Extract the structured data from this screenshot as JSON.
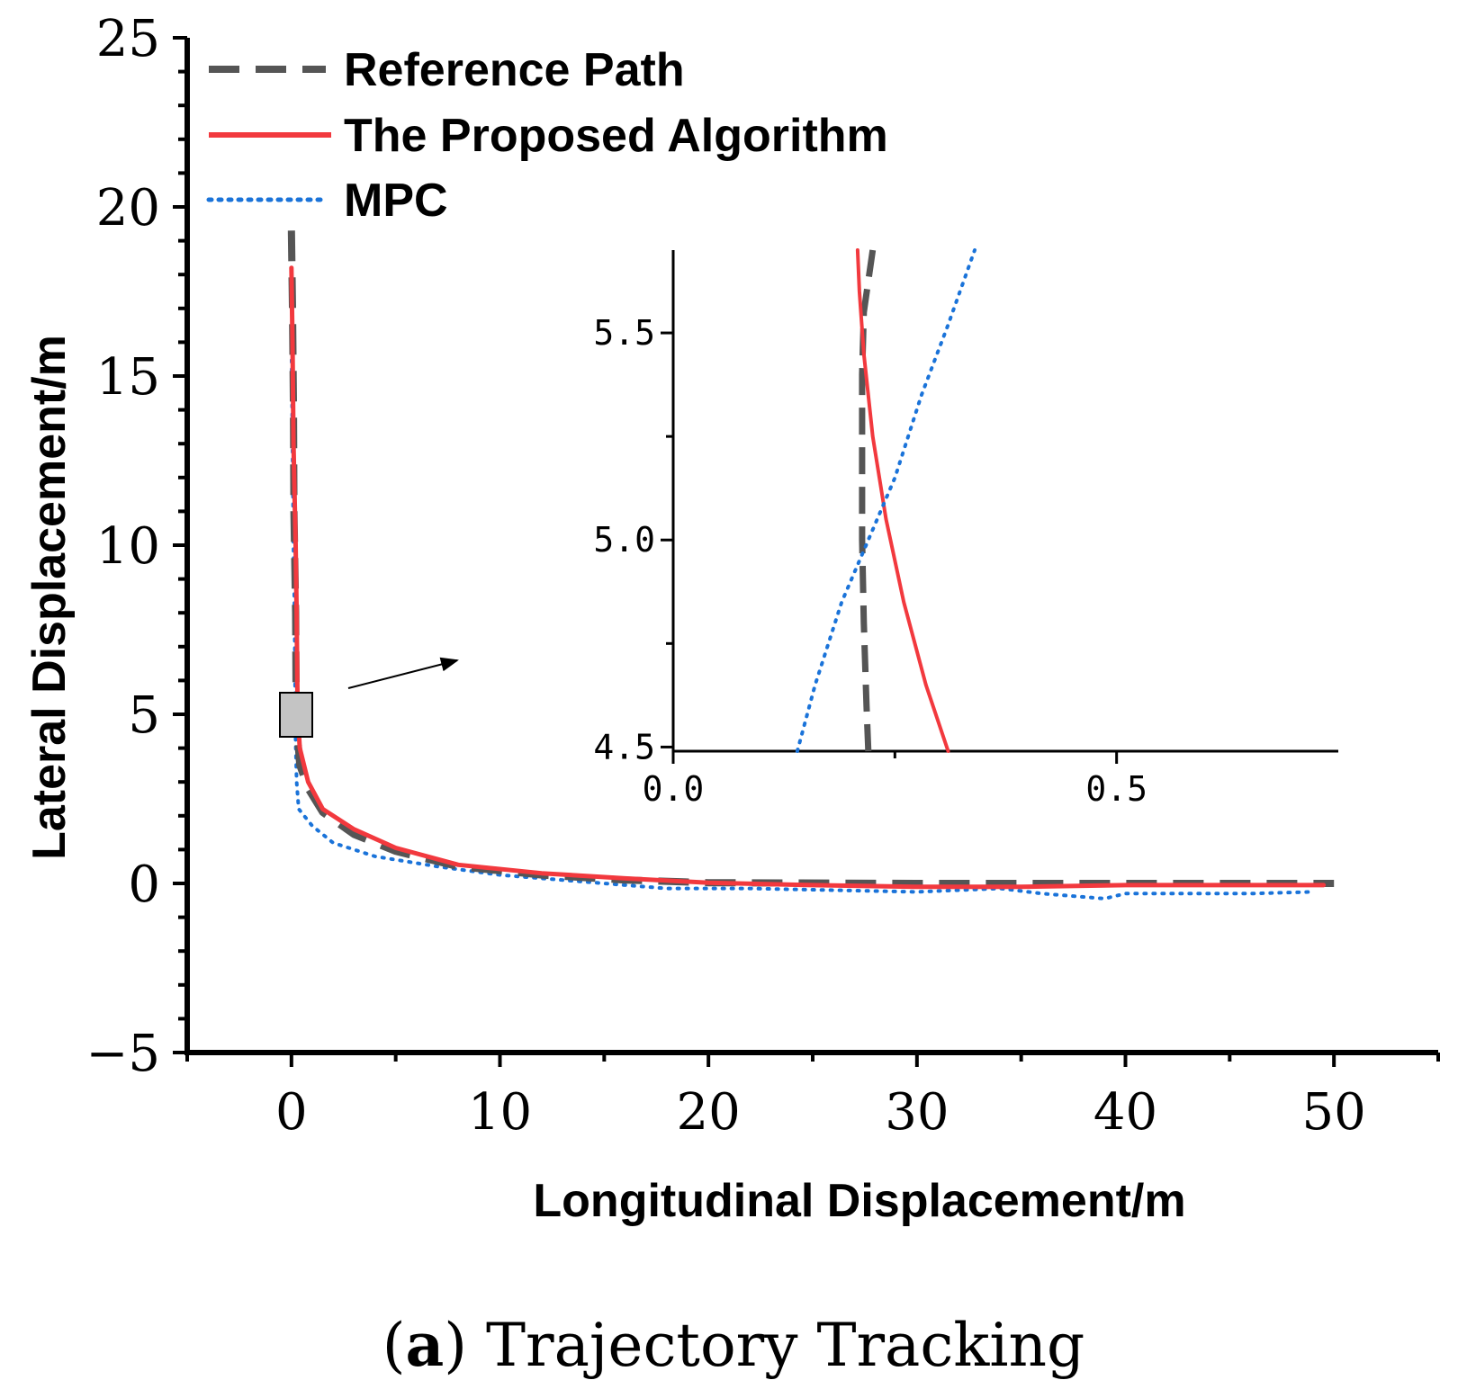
{
  "chart_data": {
    "type": "line",
    "title": "",
    "xlabel": "Longitudinal Displacement/m",
    "ylabel": "Lateral Displacement/m",
    "xlim": [
      -5,
      55
    ],
    "ylim": [
      -5,
      25
    ],
    "xticks": [
      0,
      10,
      20,
      30,
      40,
      50
    ],
    "yticks": [
      -5,
      0,
      5,
      10,
      15,
      20,
      25
    ],
    "xtick_labels": [
      "0",
      "10",
      "20",
      "30",
      "40",
      "50"
    ],
    "ytick_labels": [
      "−5",
      "0",
      "5",
      "10",
      "15",
      "20",
      "25"
    ],
    "legend_position": "top-left",
    "series": [
      {
        "name": "Reference Path",
        "color": "#555555",
        "style": "dashed",
        "points": [
          [
            0,
            19.3
          ],
          [
            0.05,
            17
          ],
          [
            0.1,
            14
          ],
          [
            0.12,
            11
          ],
          [
            0.2,
            8
          ],
          [
            0.22,
            6
          ],
          [
            0.25,
            5
          ],
          [
            0.3,
            4.3
          ],
          [
            0.4,
            3.5
          ],
          [
            0.8,
            2.8
          ],
          [
            1.5,
            2.1
          ],
          [
            3,
            1.45
          ],
          [
            5,
            0.95
          ],
          [
            8,
            0.5
          ],
          [
            12,
            0.25
          ],
          [
            16,
            0.1
          ],
          [
            20,
            0.02
          ],
          [
            30,
            0.0
          ],
          [
            40,
            0.0
          ],
          [
            50,
            0.0
          ]
        ]
      },
      {
        "name": "The Proposed Algorithm",
        "color": "#f2393e",
        "style": "solid",
        "points": [
          [
            0,
            18.2
          ],
          [
            0.05,
            16
          ],
          [
            0.1,
            13
          ],
          [
            0.2,
            10
          ],
          [
            0.25,
            8
          ],
          [
            0.28,
            6
          ],
          [
            0.3,
            5
          ],
          [
            0.4,
            4
          ],
          [
            0.8,
            3
          ],
          [
            1.5,
            2.2
          ],
          [
            3,
            1.6
          ],
          [
            5,
            1.05
          ],
          [
            8,
            0.55
          ],
          [
            12,
            0.3
          ],
          [
            16,
            0.15
          ],
          [
            20,
            0.02
          ],
          [
            25,
            -0.05
          ],
          [
            30,
            -0.1
          ],
          [
            35,
            -0.1
          ],
          [
            40,
            -0.05
          ],
          [
            45,
            -0.05
          ],
          [
            49.5,
            -0.05
          ]
        ]
      },
      {
        "name": "MPC",
        "color": "#1a73d9",
        "style": "dotted",
        "points": [
          [
            0,
            16
          ],
          [
            0.05,
            13
          ],
          [
            0.1,
            10
          ],
          [
            0.15,
            8
          ],
          [
            0.18,
            5.5
          ],
          [
            0.2,
            4.2
          ],
          [
            0.25,
            3.0
          ],
          [
            0.35,
            2.2
          ],
          [
            1,
            1.7
          ],
          [
            2,
            1.2
          ],
          [
            4,
            0.8
          ],
          [
            7,
            0.5
          ],
          [
            10,
            0.25
          ],
          [
            14,
            0.05
          ],
          [
            18,
            -0.15
          ],
          [
            22,
            -0.15
          ],
          [
            26,
            -0.2
          ],
          [
            30,
            -0.25
          ],
          [
            34,
            -0.15
          ],
          [
            36,
            -0.3
          ],
          [
            39,
            -0.45
          ],
          [
            40,
            -0.3
          ],
          [
            43,
            -0.3
          ],
          [
            46,
            -0.3
          ],
          [
            49,
            -0.25
          ]
        ]
      }
    ],
    "inset": {
      "xlim": [
        0,
        0.75
      ],
      "ylim": [
        4.49,
        5.7
      ],
      "xticks": [
        0,
        0.5
      ],
      "yticks": [
        4.5,
        5.0,
        5.5
      ],
      "xtick_labels": [
        "0.0",
        "0.5"
      ],
      "ytick_labels": [
        "4.5",
        "5.0",
        "5.5"
      ],
      "series": [
        {
          "name": "Reference Path",
          "points": [
            [
              0.22,
              4.49
            ],
            [
              0.218,
              4.6
            ],
            [
              0.215,
              4.8
            ],
            [
              0.213,
              5.0
            ],
            [
              0.213,
              5.2
            ],
            [
              0.213,
              5.4
            ],
            [
              0.215,
              5.55
            ],
            [
              0.225,
              5.7
            ]
          ]
        },
        {
          "name": "The Proposed Algorithm",
          "points": [
            [
              0.31,
              4.49
            ],
            [
              0.285,
              4.65
            ],
            [
              0.26,
              4.85
            ],
            [
              0.24,
              5.05
            ],
            [
              0.225,
              5.25
            ],
            [
              0.215,
              5.45
            ],
            [
              0.21,
              5.6
            ],
            [
              0.208,
              5.7
            ]
          ]
        },
        {
          "name": "MPC",
          "points": [
            [
              0.14,
              4.49
            ],
            [
              0.16,
              4.65
            ],
            [
              0.19,
              4.85
            ],
            [
              0.22,
              5.0
            ],
            [
              0.25,
              5.15
            ],
            [
              0.28,
              5.35
            ],
            [
              0.31,
              5.52
            ],
            [
              0.34,
              5.7
            ]
          ]
        }
      ]
    }
  },
  "caption": {
    "open_paren": "(",
    "label": "a",
    "text": ") Trajectory Tracking"
  }
}
